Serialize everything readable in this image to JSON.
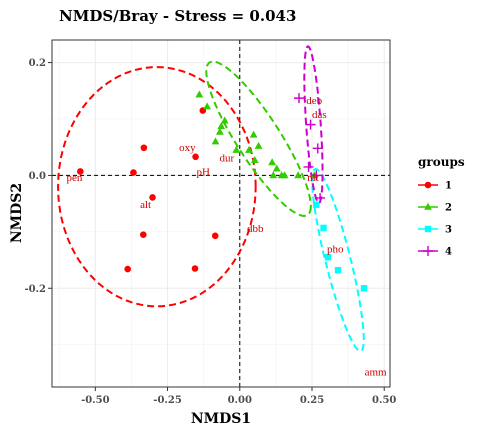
{
  "chart_data": {
    "type": "scatter",
    "title": "NMDS/Bray - Stress = 0.043",
    "xlabel": "NMDS1",
    "ylabel": "NMDS2",
    "xlim": [
      -0.65,
      0.52
    ],
    "ylim": [
      -0.375,
      0.24
    ],
    "xticks": [
      -0.5,
      -0.25,
      0.0,
      0.25,
      0.5
    ],
    "xtick_labels": [
      "-0.50",
      "-0.25",
      "0.00",
      "0.25",
      "0.50"
    ],
    "yticks": [
      -0.2,
      0.0,
      0.2
    ],
    "ytick_labels": [
      "-0.2",
      "0.0",
      "0.2"
    ],
    "grid": true,
    "reference_lines": {
      "x": 0,
      "y": 0,
      "style": "dashed"
    },
    "legend": {
      "title": "groups",
      "placement": "right"
    },
    "series": [
      {
        "name": "1",
        "color": "#ff0000",
        "marker": "circle",
        "points": [
          [
            -0.552,
            0.007
          ],
          [
            -0.368,
            0.005
          ],
          [
            -0.332,
            0.049
          ],
          [
            -0.302,
            -0.039
          ],
          [
            -0.334,
            -0.105
          ],
          [
            -0.388,
            -0.166
          ],
          [
            -0.153,
            0.033
          ],
          [
            -0.128,
            0.115
          ],
          [
            -0.085,
            -0.107
          ],
          [
            -0.155,
            -0.165
          ]
        ],
        "ellipse": {
          "cx": -0.287,
          "cy": -0.02,
          "rx": 0.342,
          "ry": 0.212,
          "angle_deg": 0
        }
      },
      {
        "name": "2",
        "color": "#33cc00",
        "marker": "triangle",
        "points": [
          [
            -0.14,
            0.143
          ],
          [
            -0.113,
            0.122
          ],
          [
            -0.084,
            0.06
          ],
          [
            -0.069,
            0.077
          ],
          [
            -0.064,
            0.087
          ],
          [
            -0.052,
            0.097
          ],
          [
            -0.012,
            0.045
          ],
          [
            0.032,
            0.045
          ],
          [
            0.048,
            0.072
          ],
          [
            0.065,
            0.052
          ],
          [
            0.052,
            0.027
          ],
          [
            0.112,
            0.023
          ],
          [
            0.116,
            0.0
          ],
          [
            0.128,
            0.012
          ],
          [
            0.145,
            0.0
          ],
          [
            0.155,
            0.0
          ],
          [
            0.202,
            0.0
          ],
          [
            0.258,
            0.0
          ]
        ],
        "ellipse": {
          "cx": 0.065,
          "cy": 0.065,
          "rx": 0.22,
          "ry": 0.055,
          "angle_deg": -36
        }
      },
      {
        "name": "3",
        "color": "#00ffff",
        "marker": "square",
        "points": [
          [
            0.265,
            -0.052
          ],
          [
            0.29,
            -0.093
          ],
          [
            0.305,
            -0.145
          ],
          [
            0.34,
            -0.168
          ],
          [
            0.43,
            -0.2
          ]
        ],
        "ellipse": {
          "cx": 0.34,
          "cy": -0.15,
          "rx": 0.18,
          "ry": 0.04,
          "angle_deg": -63
        }
      },
      {
        "name": "4",
        "color": "#cc00cc",
        "marker": "plus",
        "points": [
          [
            0.205,
            0.137
          ],
          [
            0.238,
            0.015
          ],
          [
            0.245,
            0.09
          ],
          [
            0.27,
            0.048
          ],
          [
            0.265,
            0.0
          ],
          [
            0.278,
            -0.04
          ]
        ],
        "ellipse": {
          "cx": 0.255,
          "cy": 0.09,
          "rx": 0.14,
          "ry": 0.025,
          "angle_deg": -82
        }
      }
    ],
    "annotations": [
      {
        "text": "pen",
        "x": -0.6,
        "y": -0.01
      },
      {
        "text": "alt",
        "x": -0.345,
        "y": -0.058
      },
      {
        "text": "oxy",
        "x": -0.21,
        "y": 0.043
      },
      {
        "text": "pH",
        "x": -0.15,
        "y": 0.0
      },
      {
        "text": "dur",
        "x": -0.07,
        "y": 0.025
      },
      {
        "text": "dbb",
        "x": 0.025,
        "y": -0.1
      },
      {
        "text": "deb",
        "x": 0.23,
        "y": 0.127
      },
      {
        "text": "das",
        "x": 0.25,
        "y": 0.102
      },
      {
        "text": "nit",
        "x": 0.233,
        "y": -0.01
      },
      {
        "text": "pho",
        "x": 0.302,
        "y": -0.137
      },
      {
        "text": "amm",
        "x": 0.432,
        "y": -0.355
      }
    ]
  }
}
